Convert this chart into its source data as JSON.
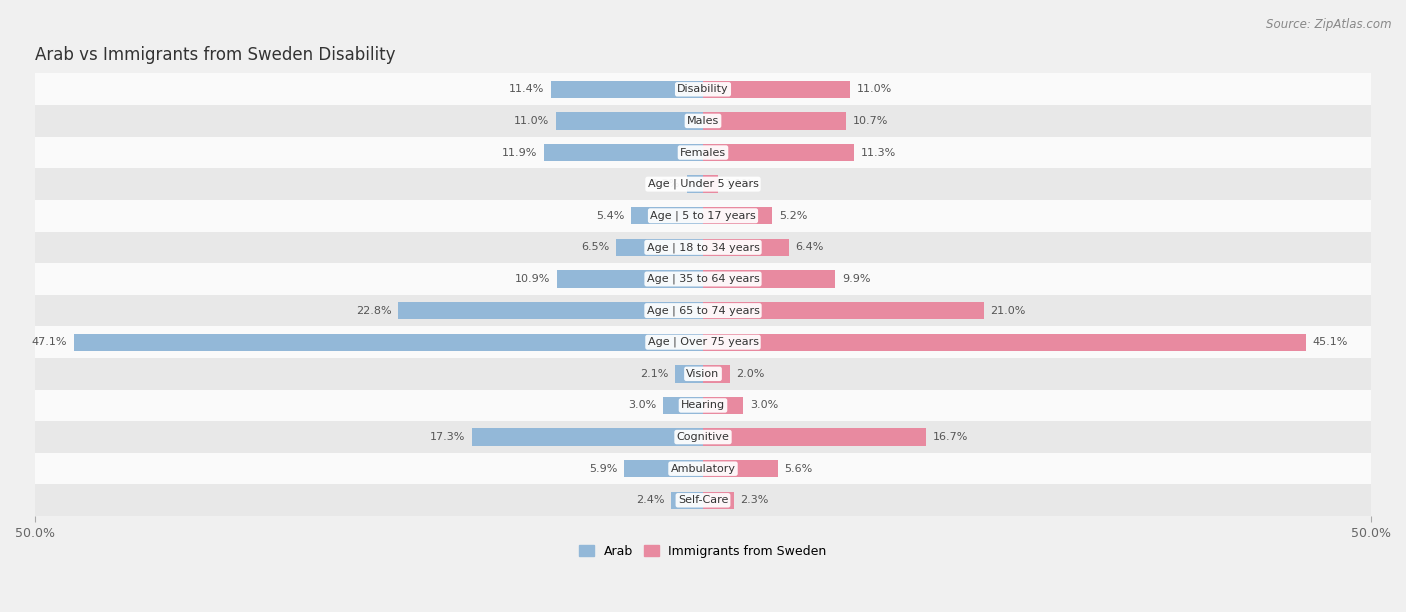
{
  "title": "Arab vs Immigrants from Sweden Disability",
  "source": "Source: ZipAtlas.com",
  "categories": [
    "Disability",
    "Males",
    "Females",
    "Age | Under 5 years",
    "Age | 5 to 17 years",
    "Age | 18 to 34 years",
    "Age | 35 to 64 years",
    "Age | 65 to 74 years",
    "Age | Over 75 years",
    "Vision",
    "Hearing",
    "Cognitive",
    "Ambulatory",
    "Self-Care"
  ],
  "arab_values": [
    11.4,
    11.0,
    11.9,
    1.2,
    5.4,
    6.5,
    10.9,
    22.8,
    47.1,
    2.1,
    3.0,
    17.3,
    5.9,
    2.4
  ],
  "sweden_values": [
    11.0,
    10.7,
    11.3,
    1.1,
    5.2,
    6.4,
    9.9,
    21.0,
    45.1,
    2.0,
    3.0,
    16.7,
    5.6,
    2.3
  ],
  "arab_color": "#93b8d8",
  "sweden_color": "#e88aa0",
  "bar_height": 0.55,
  "xlim": 50.0,
  "legend_arab": "Arab",
  "legend_sweden": "Immigrants from Sweden",
  "bg_color": "#f0f0f0",
  "row_bg_light": "#fafafa",
  "row_bg_dark": "#e8e8e8",
  "title_fontsize": 12,
  "source_fontsize": 8.5,
  "label_fontsize": 8,
  "value_fontsize": 8,
  "tick_fontsize": 9
}
